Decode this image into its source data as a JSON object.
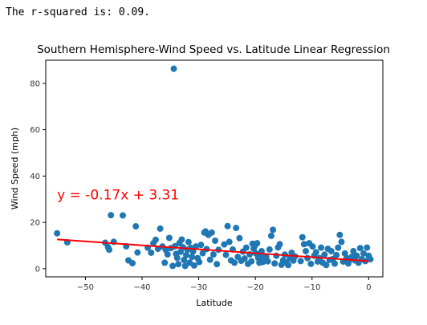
{
  "output_text": "The r-squared is: 0.09.",
  "chart_data": {
    "type": "scatter",
    "title": "Southern Hemisphere-Wind Speed vs. Latitude Linear Regression",
    "xlabel": "Latitude",
    "ylabel": "Wind Speed (mph)",
    "xlim": [
      -57,
      2.5
    ],
    "ylim": [
      -3.5,
      90
    ],
    "xticks": [
      -50,
      -40,
      -30,
      -20,
      -10,
      0
    ],
    "xtick_labels": [
      "−50",
      "−40",
      "−30",
      "−20",
      "−10",
      "0"
    ],
    "yticks": [
      0,
      20,
      40,
      60,
      80
    ],
    "ytick_labels": [
      "0",
      "20",
      "40",
      "60",
      "80"
    ],
    "grid": false,
    "point_color": "#1f77b4",
    "line_color": "#ff0000",
    "regression": {
      "slope": -0.17,
      "intercept": 3.31,
      "x_range": [
        -55,
        0
      ]
    },
    "annotation": {
      "text": "y = -0.17x + 3.31",
      "x": -55,
      "y": 30
    },
    "points": [
      [
        -55,
        15.3
      ],
      [
        -53.2,
        11.4
      ],
      [
        -46.5,
        11.2
      ],
      [
        -46,
        9.3
      ],
      [
        -45.8,
        8.2
      ],
      [
        -45.5,
        23.1
      ],
      [
        -45,
        11.6
      ],
      [
        -43.4,
        23.0
      ],
      [
        -42.8,
        9.7
      ],
      [
        -42.4,
        3.6
      ],
      [
        -41.7,
        2.4
      ],
      [
        -41.1,
        18.3
      ],
      [
        -40.8,
        7.0
      ],
      [
        -39,
        9.1
      ],
      [
        -38.4,
        6.9
      ],
      [
        -38,
        11.0
      ],
      [
        -37.6,
        12.5
      ],
      [
        -37.2,
        8.6
      ],
      [
        -36.8,
        17.3
      ],
      [
        -36.4,
        9.6
      ],
      [
        -36,
        2.6
      ],
      [
        -35.8,
        8.1
      ],
      [
        -35.5,
        6.2
      ],
      [
        -35.2,
        13.3
      ],
      [
        -34.9,
        8.9
      ],
      [
        -34.6,
        1.2
      ],
      [
        -34.4,
        86.3
      ],
      [
        -34.2,
        9.7
      ],
      [
        -34,
        6.4
      ],
      [
        -33.8,
        4.7
      ],
      [
        -33.6,
        2.0
      ],
      [
        -33.4,
        11.1
      ],
      [
        -33.2,
        7.3
      ],
      [
        -33,
        12.6
      ],
      [
        -32.8,
        9.3
      ],
      [
        -32.6,
        3.8
      ],
      [
        -32.4,
        1.2
      ],
      [
        -32.2,
        5.9
      ],
      [
        -32,
        8.2
      ],
      [
        -31.8,
        11.5
      ],
      [
        -31.6,
        2.6
      ],
      [
        -31.4,
        9.0
      ],
      [
        -31.2,
        5.1
      ],
      [
        -31,
        7.4
      ],
      [
        -30.8,
        1.4
      ],
      [
        -30.5,
        9.6
      ],
      [
        -30.2,
        4.6
      ],
      [
        -29.9,
        2.9
      ],
      [
        -29.6,
        10.3
      ],
      [
        -29.3,
        6.7
      ],
      [
        -29,
        15.6
      ],
      [
        -28.8,
        16.1
      ],
      [
        -28.6,
        8.5
      ],
      [
        -28.3,
        14.6
      ],
      [
        -28,
        3.9
      ],
      [
        -27.7,
        15.6
      ],
      [
        -27.4,
        6.2
      ],
      [
        -27.1,
        12.1
      ],
      [
        -26.8,
        2.0
      ],
      [
        -26.5,
        8.2
      ],
      [
        -25.5,
        10.5
      ],
      [
        -25.2,
        6.0
      ],
      [
        -24.9,
        18.4
      ],
      [
        -24.6,
        11.6
      ],
      [
        -24.3,
        3.6
      ],
      [
        -24,
        8.3
      ],
      [
        -23.7,
        2.6
      ],
      [
        -23.4,
        17.6
      ],
      [
        -23.1,
        5.1
      ],
      [
        -22.8,
        13.2
      ],
      [
        -22.5,
        3.4
      ],
      [
        -22.2,
        7.4
      ],
      [
        -21.9,
        4.4
      ],
      [
        -21.6,
        9.1
      ],
      [
        -21.3,
        2.1
      ],
      [
        -21,
        6.2
      ],
      [
        -20.7,
        3.2
      ],
      [
        -20.5,
        10.8
      ],
      [
        -20.3,
        8.6
      ],
      [
        -20.1,
        9.9
      ],
      [
        -19.9,
        6.6
      ],
      [
        -19.7,
        11.0
      ],
      [
        -19.5,
        4.7
      ],
      [
        -19.3,
        2.6
      ],
      [
        -19.1,
        5.7
      ],
      [
        -18.9,
        7.6
      ],
      [
        -18.7,
        2.9
      ],
      [
        -18.4,
        4.1
      ],
      [
        -18.1,
        5.2
      ],
      [
        -17.8,
        3.2
      ],
      [
        -17.5,
        8.3
      ],
      [
        -17.2,
        14.2
      ],
      [
        -16.9,
        16.8
      ],
      [
        -16.6,
        2.3
      ],
      [
        -16.3,
        5.6
      ],
      [
        -16,
        9.2
      ],
      [
        -15.7,
        10.6
      ],
      [
        -15.4,
        1.7
      ],
      [
        -15.1,
        3.6
      ],
      [
        -14.8,
        6.1
      ],
      [
        -14.5,
        2.7
      ],
      [
        -14.2,
        1.6
      ],
      [
        -13.9,
        4.6
      ],
      [
        -13.6,
        6.9
      ],
      [
        -13.3,
        3.5
      ],
      [
        -13,
        5.3
      ],
      [
        -12,
        3.3
      ],
      [
        -11.7,
        13.6
      ],
      [
        -11.4,
        10.6
      ],
      [
        -11.1,
        7.6
      ],
      [
        -10.8,
        4.6
      ],
      [
        -10.5,
        11.0
      ],
      [
        -10.2,
        2.1
      ],
      [
        -9.9,
        9.6
      ],
      [
        -9.6,
        5.6
      ],
      [
        -9.3,
        7.1
      ],
      [
        -9,
        3.1
      ],
      [
        -8.7,
        4.6
      ],
      [
        -8.4,
        9.1
      ],
      [
        -8.1,
        2.6
      ],
      [
        -7.8,
        6.1
      ],
      [
        -7.5,
        1.6
      ],
      [
        -7.2,
        8.6
      ],
      [
        -6.9,
        3.8
      ],
      [
        -6.6,
        7.6
      ],
      [
        -6.3,
        4.2
      ],
      [
        -6,
        2.2
      ],
      [
        -5.7,
        5.9
      ],
      [
        -5.4,
        9.1
      ],
      [
        -5.1,
        14.6
      ],
      [
        -4.8,
        11.6
      ],
      [
        -4.5,
        3.1
      ],
      [
        -4.2,
        6.6
      ],
      [
        -3.9,
        4.6
      ],
      [
        -3.6,
        2.3
      ],
      [
        -3.3,
        3.9
      ],
      [
        -3,
        5.1
      ],
      [
        -2.7,
        7.6
      ],
      [
        -2.4,
        3.6
      ],
      [
        -2.1,
        5.6
      ],
      [
        -1.8,
        2.6
      ],
      [
        -1.5,
        8.9
      ],
      [
        -1.2,
        4.1
      ],
      [
        -0.9,
        6.6
      ],
      [
        -0.6,
        3.3
      ],
      [
        -0.3,
        9.1
      ],
      [
        0,
        5.6
      ],
      [
        0.3,
        4.1
      ]
    ]
  }
}
